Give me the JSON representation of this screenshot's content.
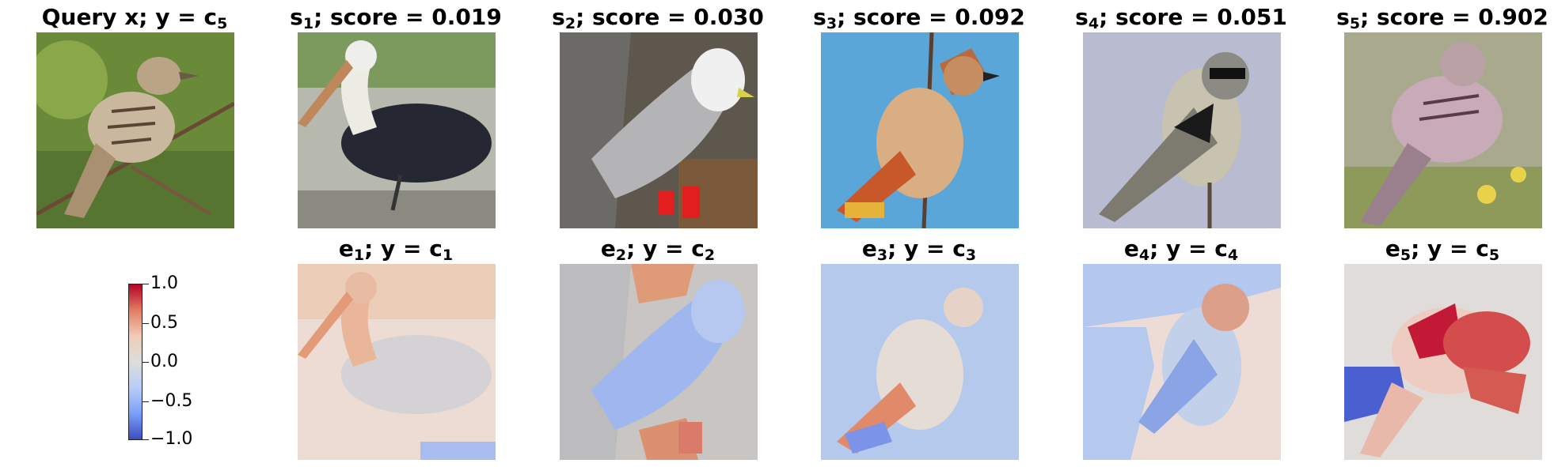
{
  "query": {
    "title": "Query x; y = c",
    "sub": "5"
  },
  "scores": [
    {
      "s": "s",
      "sub": "1",
      "text": "; score = 0.019",
      "scene": "pelican-photo"
    },
    {
      "s": "s",
      "sub": "2",
      "text": "; score = 0.030",
      "scene": "kittiwake-photo"
    },
    {
      "s": "s",
      "sub": "3",
      "text": "; score = 0.092",
      "scene": "waxwing-photo"
    },
    {
      "s": "s",
      "sub": "4",
      "text": "; score = 0.051",
      "scene": "shrike-photo"
    },
    {
      "s": "s",
      "sub": "5",
      "text": "; score = 0.902",
      "scene": "sparrow-photo"
    }
  ],
  "explanations": [
    {
      "e": "e",
      "esub": "1",
      "mid": "; y = c",
      "csub": "1",
      "scene": "pelican-heatmap"
    },
    {
      "e": "e",
      "esub": "2",
      "mid": "; y = c",
      "csub": "2",
      "scene": "kittiwake-heatmap"
    },
    {
      "e": "e",
      "esub": "3",
      "mid": "; y = c",
      "csub": "3",
      "scene": "waxwing-heatmap"
    },
    {
      "e": "e",
      "esub": "4",
      "mid": "; y = c",
      "csub": "4",
      "scene": "shrike-heatmap"
    },
    {
      "e": "e",
      "esub": "5",
      "mid": "; y = c",
      "csub": "5",
      "scene": "sparrow-heatmap"
    }
  ],
  "colorbar": {
    "ticks": [
      "1.0",
      "0.5",
      "0.0",
      "−0.5",
      "−1.0"
    ],
    "colors": {
      "high": "#b40426",
      "mid": "#dddddd",
      "low": "#3b4cc0"
    }
  }
}
